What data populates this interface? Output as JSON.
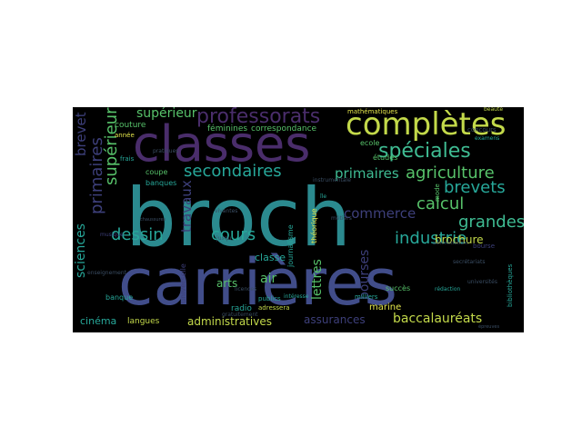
{
  "palette": {
    "background": "#000000",
    "page": "#ffffff",
    "teal": "#2b8a8f",
    "indigo": "#414d8a",
    "purple": "#4a2d6b",
    "lime": "#c3d94a",
    "green": "#57c26a",
    "seafoam": "#3fbc93",
    "navy": "#3d3f7a",
    "yellow": "#e4e64b",
    "aqua": "#27a89a",
    "dim": "#3a4d63"
  },
  "words": [
    {
      "text": "broch",
      "color": "teal"
    },
    {
      "text": "carrières",
      "color": "indigo"
    },
    {
      "text": "classes",
      "color": "purple"
    },
    {
      "text": "complètes",
      "color": "lime"
    },
    {
      "text": "professorats",
      "color": "purple"
    },
    {
      "text": "spéciales",
      "color": "seafoam"
    },
    {
      "text": "secondaires",
      "color": "aqua"
    },
    {
      "text": "agriculture",
      "color": "green"
    },
    {
      "text": "brevets",
      "color": "aqua"
    },
    {
      "text": "calcul",
      "color": "green"
    },
    {
      "text": "grandes",
      "color": "seafoam"
    },
    {
      "text": "industrie",
      "color": "aqua"
    },
    {
      "text": "dessin",
      "color": "aqua"
    },
    {
      "text": "cours",
      "color": "aqua"
    },
    {
      "text": "supérieur",
      "color": "green"
    },
    {
      "text": "primaires",
      "color": "navy"
    },
    {
      "text": "commerce",
      "color": "green"
    },
    {
      "text": "ecoles",
      "color": "seafoam"
    },
    {
      "text": "droit",
      "color": "navy"
    },
    {
      "text": "travaux",
      "color": "navy"
    },
    {
      "text": "brevet",
      "color": "navy"
    },
    {
      "text": "sciences",
      "color": "aqua"
    },
    {
      "text": "lettres",
      "color": "green"
    },
    {
      "text": "bourses",
      "color": "navy"
    },
    {
      "text": "brochure",
      "color": "lime"
    },
    {
      "text": "administratives",
      "color": "lime"
    },
    {
      "text": "assurances",
      "color": "navy"
    },
    {
      "text": "baccalauréats",
      "color": "lime"
    },
    {
      "text": "cinéma",
      "color": "aqua"
    },
    {
      "text": "langues",
      "color": "lime"
    },
    {
      "text": "arts",
      "color": "green"
    },
    {
      "text": "air",
      "color": "green"
    },
    {
      "text": "classe",
      "color": "aqua"
    },
    {
      "text": "marine",
      "color": "yellow"
    },
    {
      "text": "féminines",
      "color": "green"
    },
    {
      "text": "correspondance",
      "color": "green"
    },
    {
      "text": "mathématiques",
      "color": "yellow"
    },
    {
      "text": "couture",
      "color": "green"
    },
    {
      "text": "ecole",
      "color": "green"
    },
    {
      "text": "études",
      "color": "green"
    },
    {
      "text": "coupe",
      "color": "green"
    },
    {
      "text": "banques",
      "color": "aqua"
    },
    {
      "text": "journalisme",
      "color": "aqua"
    },
    {
      "text": "radio",
      "color": "aqua"
    },
    {
      "text": "théorique",
      "color": "yellow"
    },
    {
      "text": "universelle",
      "color": "navy"
    },
    {
      "text": "succès",
      "color": "green"
    },
    {
      "text": "banque",
      "color": "aqua"
    },
    {
      "text": "publics",
      "color": "aqua"
    },
    {
      "text": "milliers",
      "color": "aqua"
    },
    {
      "text": "mode",
      "color": "green"
    },
    {
      "text": "bibliothèques",
      "color": "aqua"
    },
    {
      "text": "bourse",
      "color": "navy"
    },
    {
      "text": "année",
      "color": "yellow"
    },
    {
      "text": "frais",
      "color": "aqua"
    },
    {
      "text": "concours",
      "color": "dim"
    },
    {
      "text": "examens",
      "color": "aqua"
    },
    {
      "text": "beauté",
      "color": "lime"
    },
    {
      "text": "rédaction",
      "color": "aqua"
    },
    {
      "text": "adressera",
      "color": "lime"
    },
    {
      "text": "gratuitement",
      "color": "dim"
    },
    {
      "text": "intéresse",
      "color": "aqua"
    },
    {
      "text": "jusqu",
      "color": "dim"
    },
    {
      "text": "licences",
      "color": "dim"
    },
    {
      "text": "vivantes",
      "color": "dim"
    },
    {
      "text": "île",
      "color": "aqua"
    },
    {
      "text": "métiers",
      "color": "dim"
    },
    {
      "text": "pratiques",
      "color": "dim"
    },
    {
      "text": "musique",
      "color": "navy"
    },
    {
      "text": "secrétariats",
      "color": "dim"
    },
    {
      "text": "instrumentale",
      "color": "dim"
    },
    {
      "text": "enseignement",
      "color": "dim"
    },
    {
      "text": "universités",
      "color": "dim"
    },
    {
      "text": "chaussures",
      "color": "dim"
    },
    {
      "text": "administrations",
      "color": "dim"
    },
    {
      "text": "épreuves",
      "color": "dim"
    }
  ]
}
